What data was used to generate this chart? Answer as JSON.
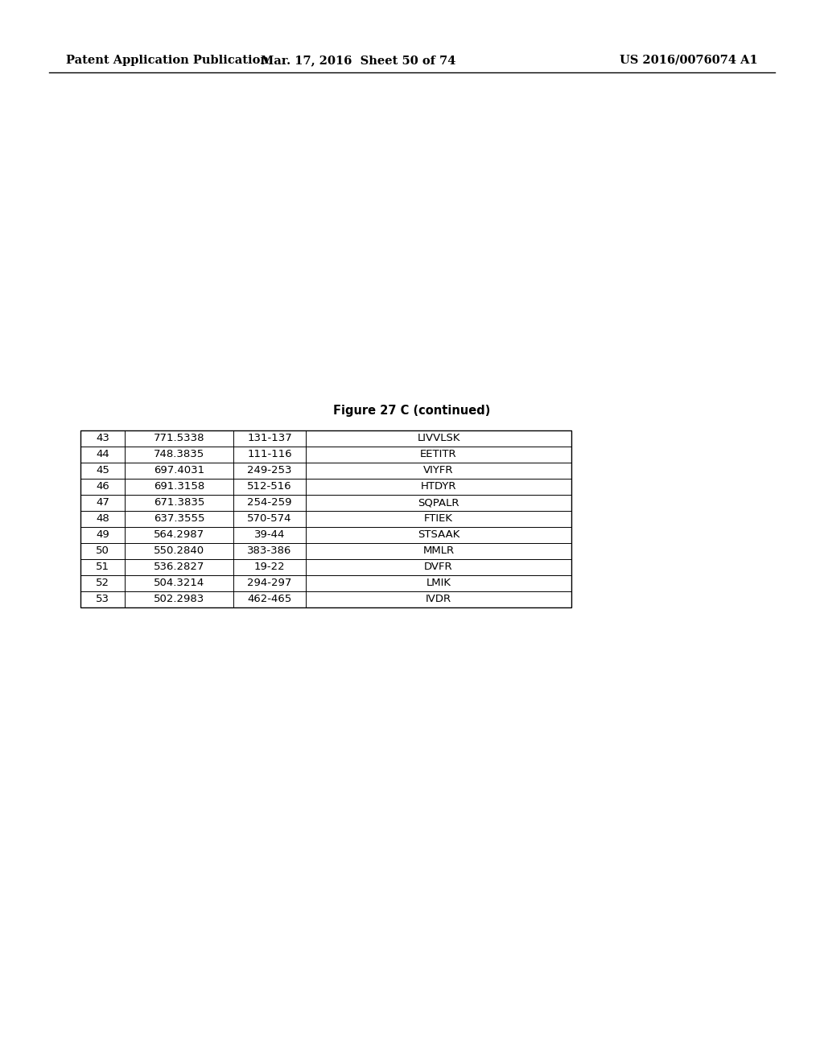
{
  "header_left": "Patent Application Publication",
  "header_mid": "Mar. 17, 2016  Sheet 50 of 74",
  "header_right": "US 2016/0076074 A1",
  "figure_caption": "Figure 27 C (continued)",
  "table_rows": [
    [
      "43",
      "771.5338",
      "131-137",
      "LIVVLSK"
    ],
    [
      "44",
      "748.3835",
      "111-116",
      "EETITR"
    ],
    [
      "45",
      "697.4031",
      "249-253",
      "VIYFR"
    ],
    [
      "46",
      "691.3158",
      "512-516",
      "HTDYR"
    ],
    [
      "47",
      "671.3835",
      "254-259",
      "SQPALR"
    ],
    [
      "48",
      "637.3555",
      "570-574",
      "FTIEK"
    ],
    [
      "49",
      "564.2987",
      "39-44",
      "STSAAK"
    ],
    [
      "50",
      "550.2840",
      "383-386",
      "MMLR"
    ],
    [
      "51",
      "536.2827",
      "19-22",
      "DVFR"
    ],
    [
      "52",
      "504.3214",
      "294-297",
      "LMIK"
    ],
    [
      "53",
      "502.2983",
      "462-465",
      "IVDR"
    ]
  ],
  "background_color": "#ffffff",
  "header_fontsize": 10.5,
  "caption_fontsize": 10.5,
  "table_fontsize": 9.5
}
